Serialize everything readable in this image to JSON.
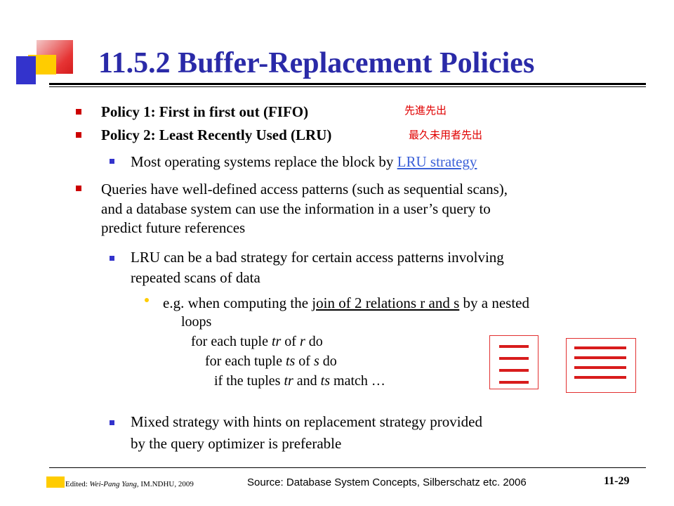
{
  "slide": {
    "title": "11.5.2 Buffer-Replacement Policies"
  },
  "bullets": {
    "policy1": "Policy 1: First in first out (FIFO)",
    "policy1_cn": "先進先出",
    "policy2": "Policy 2: Least Recently Used (LRU)",
    "policy2_cn": "最久未用者先出",
    "os_prefix": "Most operating systems replace the block by ",
    "os_link": "LRU strategy",
    "queries_line1": "Queries have well-defined access patterns (such as sequential scans),",
    "queries_line2": "and a database system can use the information in a user’s query to",
    "queries_line3": "predict future references",
    "lru_bad_line1": "LRU can be a bad strategy for certain access patterns involving",
    "lru_bad_line2": "repeated scans of data",
    "eg_prefix": "e.g. when computing the ",
    "eg_underlined": "join of 2 relations r and s",
    "eg_suffix": " by a nested",
    "eg_line2": "loops",
    "loop1_a": "for each tuple ",
    "loop1_tr": "tr",
    "loop1_b": " of ",
    "loop1_r": "r",
    "loop1_c": " do",
    "loop2_a": "for each tuple ",
    "loop2_ts": "ts",
    "loop2_b": " of ",
    "loop2_s": "s",
    "loop2_c": " do",
    "loop3_a": "if the tuples ",
    "loop3_tr": "tr",
    "loop3_b": " and ",
    "loop3_ts": "ts",
    "loop3_c": " match …",
    "mixed_line1": "Mixed strategy with hints on replacement strategy provided",
    "mixed_line2": "by the query optimizer is preferable"
  },
  "footer": {
    "edited_label": "Edited: ",
    "edited_author": "Wei-Pang Yang,",
    "edited_rest": " IM.NDHU, 2009",
    "source": "Source: Database System Concepts, Silberschatz etc. 2006",
    "page": "11-29"
  },
  "colors": {
    "title": "#2a2aa8",
    "bullet_primary": "#cc0000",
    "bullet_secondary": "#3333cc",
    "cjk_note": "#e00000",
    "link": "#3b60d8",
    "page_lines": "#d81c1c"
  }
}
